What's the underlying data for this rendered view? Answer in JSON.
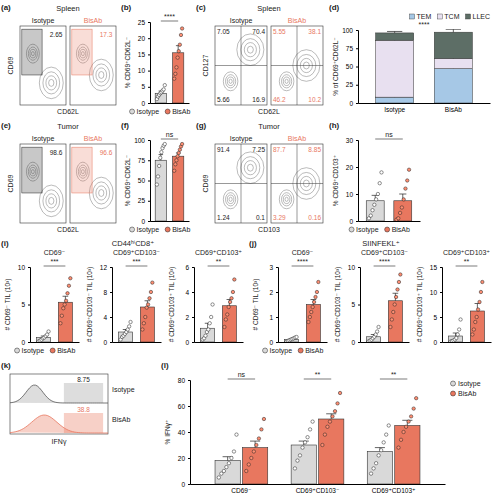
{
  "chart_data": [
    {
      "panel": "(a)",
      "type": "gate",
      "title": "Spleen",
      "x_label": "CD62L",
      "y_label": "CD69",
      "samples": [
        {
          "name": "Isotype",
          "color": "#222222",
          "gates": [
            2.65
          ]
        },
        {
          "name": "BisAb",
          "color": "#e8775f",
          "gates": [
            17.3
          ]
        }
      ]
    },
    {
      "panel": "(b)",
      "type": "bar",
      "y_label": "% CD69⁺CD62L⁻",
      "categories": [
        "Isotype",
        "BisAb"
      ],
      "values": [
        3.0,
        15.5
      ],
      "errors": [
        0.7,
        2.2
      ],
      "points": [
        [
          1.2,
          2.0,
          2.5,
          3.0,
          3.3,
          3.8,
          4.2,
          5.5
        ],
        [
          7.5,
          9,
          11,
          14,
          16,
          18,
          21,
          23
        ]
      ],
      "colors": [
        "#d9d9d9",
        "#e8775f"
      ],
      "ylim": [
        0,
        25
      ],
      "yticks": [
        0,
        5,
        10,
        15,
        20,
        25
      ],
      "annotations": [
        "****"
      ],
      "legend": "bottom",
      "tick_labels": "y"
    },
    {
      "panel": "(c)",
      "type": "quadrant",
      "title": "Spleen",
      "x_label": "CD62L",
      "y_label": "CD127",
      "samples": [
        {
          "name": "Isotype",
          "color": "#222222",
          "gates": [
            7.05,
            70.4,
            5.66,
            16.9
          ]
        },
        {
          "name": "BisAb",
          "color": "#e8775f",
          "gates": [
            5.55,
            38.1,
            46.2,
            10.2
          ]
        }
      ]
    },
    {
      "panel": "(d)",
      "type": "bar",
      "stacked": true,
      "y_label": "% of CD69⁺CD62L⁻",
      "categories": [
        "Isotype",
        "BisAb"
      ],
      "series": [
        {
          "name": "TEM",
          "color": "#a6c8e6",
          "values": [
            8,
            47
          ],
          "errors": [
            2,
            4
          ]
        },
        {
          "name": "TCM",
          "color": "#e8e0f0",
          "values": [
            78,
            14
          ],
          "errors": [
            3,
            3
          ]
        },
        {
          "name": "LLEC",
          "color": "#5d6e66",
          "values": [
            10,
            36
          ],
          "errors": [
            2,
            4
          ]
        }
      ],
      "ylim": [
        0,
        100
      ],
      "yticks": [
        0,
        25,
        50,
        75,
        100
      ],
      "annotations": [
        "****"
      ],
      "legend": "top"
    },
    {
      "panel": "(e)",
      "type": "gate",
      "title": "Tumor",
      "x_label": "CD62L",
      "y_label": "CD69",
      "samples": [
        {
          "name": "Isotype",
          "color": "#222222",
          "gates": [
            98.6
          ]
        },
        {
          "name": "BisAb",
          "color": "#e8775f",
          "gates": [
            96.6
          ]
        }
      ]
    },
    {
      "panel": "(f)",
      "type": "bar",
      "y_label": "% CD69⁺CD62L⁻",
      "categories": [
        "Isotype",
        "BisAb"
      ],
      "values": [
        75,
        80
      ],
      "errors": [
        7,
        4
      ],
      "points": [
        [
          45,
          55,
          68,
          78,
          85,
          90,
          93,
          95
        ],
        [
          62,
          70,
          75,
          80,
          84,
          88,
          92,
          95
        ]
      ],
      "colors": [
        "#d9d9d9",
        "#e8775f"
      ],
      "ylim": [
        0,
        100
      ],
      "yticks": [
        0,
        25,
        50,
        75,
        100
      ],
      "annotations": [
        "ns"
      ],
      "legend": "bottom",
      "tick_labels": "y"
    },
    {
      "panel": "(g)",
      "type": "quadrant",
      "title": "Tumor",
      "x_label": "CD103",
      "y_label": "CD69",
      "samples": [
        {
          "name": "Isotype",
          "color": "#222222",
          "gates": [
            91.4,
            7.25,
            1.24,
            0.1
          ]
        },
        {
          "name": "BisAb",
          "color": "#e8775f",
          "gates": [
            87.7,
            8.85,
            3.29,
            0.16
          ]
        }
      ]
    },
    {
      "panel": "(h)",
      "type": "bar",
      "y_label": "% CD69⁺CD103⁺",
      "categories": [
        "Isotype",
        "BisAb"
      ],
      "values": [
        7.5,
        7.5
      ],
      "errors": [
        2,
        2.5
      ],
      "points": [
        [
          1,
          2,
          4,
          6,
          8,
          10,
          14,
          18
        ],
        [
          0.5,
          1,
          3,
          5,
          8,
          12,
          15,
          19
        ]
      ],
      "colors": [
        "#d9d9d9",
        "#e8775f"
      ],
      "ylim": [
        0,
        30
      ],
      "yticks": [
        0,
        10,
        20,
        30
      ],
      "annotations": [
        "ns"
      ],
      "legend": "bottom",
      "tick_labels": "y"
    },
    {
      "panel": "(i)",
      "type": "bar",
      "title": "CD69⁻",
      "y_label": "# CD69⁻ TIL (10³)",
      "categories": [
        "Isotype",
        "BisAb"
      ],
      "values": [
        0.6,
        5.3
      ],
      "errors": [
        0.2,
        0.8
      ],
      "points": [
        [
          0.1,
          0.2,
          0.3,
          0.5,
          0.6,
          0.8,
          1.0,
          1.4
        ],
        [
          2.5,
          3.5,
          4.5,
          5,
          5.5,
          6.5,
          7.5,
          8.5
        ]
      ],
      "colors": [
        "#d9d9d9",
        "#e8775f"
      ],
      "ylim": [
        0,
        10
      ],
      "yticks": [
        0,
        5,
        10
      ],
      "annotations": [
        "***"
      ],
      "legend": "bottom",
      "tick_labels": "y"
    },
    {
      "type": "bar",
      "subtitle": "CD44ʰⁱCD8⁺",
      "title": "CD69⁺CD103⁻",
      "y_label": "# CD69⁺CD103⁻ TIL (10³)",
      "categories": [
        "Isotype",
        "BisAb"
      ],
      "values": [
        1.6,
        5.6
      ],
      "errors": [
        0.4,
        1.0
      ],
      "points": [
        [
          0.4,
          0.8,
          1,
          1.3,
          1.6,
          2,
          2.5,
          3.2
        ],
        [
          2,
          3,
          4,
          5.5,
          6,
          7,
          8,
          9.5
        ]
      ],
      "colors": [
        "#d9d9d9",
        "#e8775f"
      ],
      "ylim": [
        0,
        12
      ],
      "yticks": [
        0,
        4,
        8,
        12
      ],
      "annotations": [
        "***"
      ],
      "tick_labels": "y"
    },
    {
      "type": "bar",
      "title": "CD69⁺CD103⁺",
      "y_label": "# CD69⁺CD103⁺ TIL (10³)",
      "categories": [
        "Isotype",
        "BisAb"
      ],
      "values": [
        1.1,
        2.9
      ],
      "errors": [
        0.4,
        0.5
      ],
      "points": [
        [
          0.2,
          0.3,
          0.5,
          0.8,
          1,
          1.5,
          2,
          3
        ],
        [
          1.2,
          1.8,
          2.2,
          2.8,
          3.2,
          3.5,
          4,
          5
        ]
      ],
      "colors": [
        "#d9d9d9",
        "#e8775f"
      ],
      "ylim": [
        0,
        6
      ],
      "yticks": [
        0,
        2,
        4,
        6
      ],
      "annotations": [
        "**"
      ],
      "tick_labels": "y"
    },
    {
      "panel": "(j)",
      "type": "bar",
      "title": "CD69⁻",
      "y_label": "# CD69⁻ TIL (10³)",
      "categories": [
        "Isotype",
        "BisAb"
      ],
      "values": [
        0.1,
        1.5
      ],
      "errors": [
        0.03,
        0.2
      ],
      "points": [
        [
          0.02,
          0.05,
          0.07,
          0.1,
          0.12,
          0.15,
          0.18,
          0.2
        ],
        [
          0.8,
          1,
          1.2,
          1.4,
          1.6,
          1.8,
          2,
          2.4
        ]
      ],
      "colors": [
        "#d9d9d9",
        "#e8775f"
      ],
      "ylim": [
        0,
        3
      ],
      "yticks": [
        0,
        1,
        2,
        3
      ],
      "annotations": [
        "****"
      ],
      "legend": "bottom",
      "tick_labels": "y"
    },
    {
      "type": "bar",
      "subtitle": "SIINFEKL⁺",
      "title": "CD69⁺CD103⁻",
      "y_label": "# CD69⁺CD103⁻ TIL (10³)",
      "categories": [
        "Isotype",
        "BisAb"
      ],
      "values": [
        0.7,
        5.5
      ],
      "errors": [
        0.3,
        1.0
      ],
      "points": [
        [
          0.1,
          0.2,
          0.3,
          0.5,
          0.7,
          1,
          1.4,
          2
        ],
        [
          2,
          3,
          4,
          5,
          6,
          7,
          8,
          9
        ]
      ],
      "colors": [
        "#d9d9d9",
        "#e8775f"
      ],
      "ylim": [
        0,
        10
      ],
      "yticks": [
        0,
        5,
        10
      ],
      "annotations": [
        "****"
      ],
      "tick_labels": "y"
    },
    {
      "type": "bar",
      "title": "CD69⁺CD103⁺",
      "y_label": "# CD69⁺CD103⁺ TIL (10³)",
      "categories": [
        "Isotype",
        "BisAb"
      ],
      "values": [
        1.2,
        6.2
      ],
      "errors": [
        0.6,
        1.5
      ],
      "points": [
        [
          0.1,
          0.2,
          0.3,
          0.5,
          0.8,
          1.5,
          2.5,
          4.5
        ],
        [
          1.5,
          2.5,
          4,
          5,
          6.5,
          8,
          10,
          12
        ]
      ],
      "colors": [
        "#d9d9d9",
        "#e8775f"
      ],
      "ylim": [
        0,
        15
      ],
      "yticks": [
        0,
        5,
        10,
        15
      ],
      "annotations": [
        "**"
      ],
      "tick_labels": "y"
    },
    {
      "panel": "(k)",
      "type": "histogram_gate",
      "x_label": "IFNγ",
      "samples": [
        {
          "name": "Isotype",
          "color": "#9e9e9e",
          "gates": [
            8.75
          ]
        },
        {
          "name": "BisAb",
          "color": "#e8775f",
          "gates": [
            38.8
          ]
        }
      ]
    },
    {
      "panel": "(l)",
      "type": "bar",
      "y_label": "% IFNγ⁺",
      "categories": [
        "CD69⁻",
        "CD69⁺CD103⁻",
        "CD69⁺CD103⁺"
      ],
      "series": [
        {
          "name": "Isotype",
          "color": "#d9d9d9",
          "values": [
            18,
            30,
            25
          ],
          "errors": [
            3,
            3,
            3
          ],
          "points": [
            [
              5,
              8,
              10,
              13,
              16,
              20,
              25,
              38
            ],
            [
              12,
              18,
              22,
              28,
              32,
              36,
              42,
              48
            ],
            [
              8,
              12,
              16,
              22,
              26,
              32,
              38,
              45
            ]
          ]
        },
        {
          "name": "BisAb",
          "color": "#e8775f",
          "values": [
            28,
            50,
            45
          ],
          "errors": [
            5,
            4,
            4
          ],
          "points": [
            [
              10,
              15,
              20,
              25,
              30,
              35,
              42,
              50
            ],
            [
              30,
              38,
              44,
              48,
              52,
              56,
              62,
              70
            ],
            [
              28,
              34,
              40,
              44,
              48,
              52,
              58,
              66
            ]
          ]
        }
      ],
      "ylim": [
        0,
        80
      ],
      "yticks": [
        0,
        20,
        40,
        60,
        80
      ],
      "annotations": [
        "ns",
        "**",
        "**"
      ],
      "legend": "top-right"
    }
  ]
}
